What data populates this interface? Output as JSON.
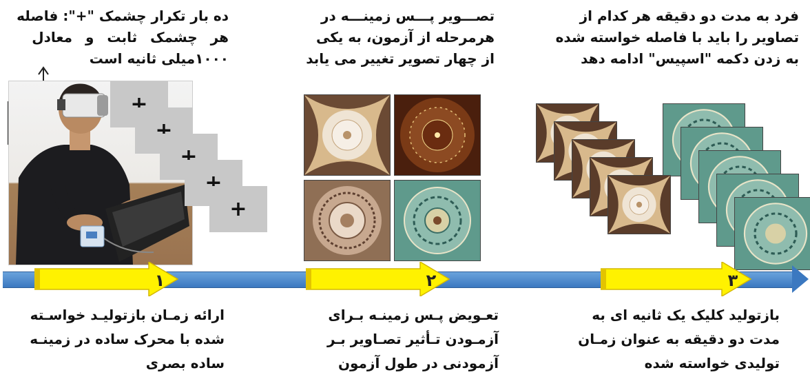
{
  "top_texts": {
    "left": [
      "ده بار تکرار چشمک \"+\": فاصله",
      "هر چشمک ثابت و معادل",
      "۱۰۰۰میلی ثانیه است"
    ],
    "middle": [
      "تصـــویر پـــس زمینـــه در",
      "هرمرحله از آزمون، به یکی",
      "از چهار تصویر تغییر می یابد"
    ],
    "right": [
      "فرد به مدت دو دقیقه هر کدام از",
      "تصاویر را باید با فاصله خواسته شده",
      "به زدن دکمه \"اسپیس\" ادامه دهد"
    ]
  },
  "bottom_texts": {
    "left": [
      "ارائه زمـان بازتولیـد خواسـته",
      "شده با محرک ساده در زمینـه",
      "ساده بصری"
    ],
    "middle": [
      "تعـویض پـس زمینـه بـرای",
      "آزمـودن تـأثیر تصـاویر بـر",
      "آزمودنی در طول آزمون"
    ],
    "right": [
      "بازتولید کلیک یک ثانیه ای به",
      "مدت دو دقیقه به عنوان زمـان",
      "تولیدی خواسته شده"
    ]
  },
  "stages": [
    "۱",
    "۲",
    "۳"
  ],
  "stimulus_symbol": "+",
  "colors": {
    "timeline": "#3b78c0",
    "stage_arrow": "#fff200",
    "stimulus_card": "#c8c8c8",
    "tile_warm": "#d8b98c",
    "tile_brown": "#7a3a16",
    "tile_teal": "#5f9a8c"
  }
}
